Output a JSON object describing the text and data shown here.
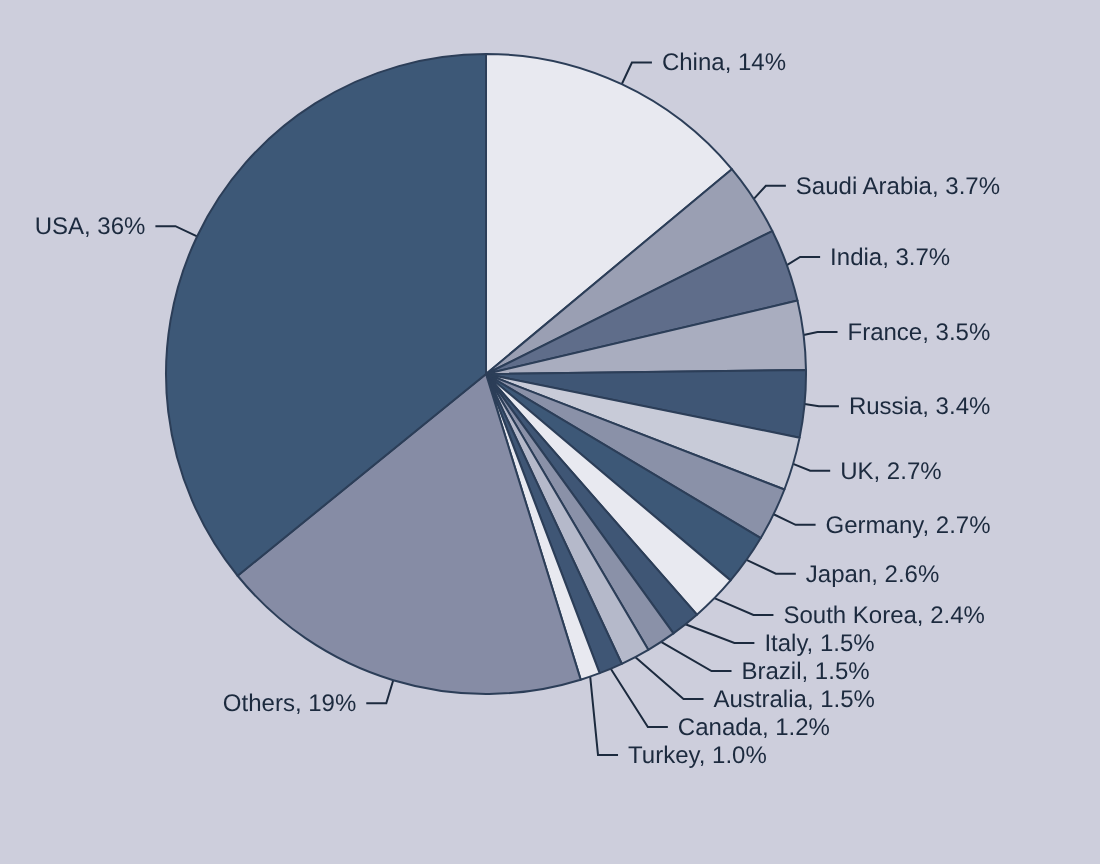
{
  "chart_data": {
    "type": "pie",
    "categories": [
      "China",
      "Saudi Arabia",
      "India",
      "France",
      "Russia",
      "UK",
      "Germany",
      "Japan",
      "South Korea",
      "Italy",
      "Brazil",
      "Australia",
      "Canada",
      "Turkey",
      "Others",
      "USA"
    ],
    "values": [
      14,
      3.7,
      3.7,
      3.5,
      3.4,
      2.7,
      2.7,
      2.6,
      2.4,
      1.5,
      1.5,
      1.5,
      1.2,
      1.0,
      19,
      36
    ],
    "value_labels": [
      "14%",
      "3.7%",
      "3.7%",
      "3.5%",
      "3.4%",
      "2.7%",
      "2.7%",
      "2.6%",
      "2.4%",
      "1.5%",
      "1.5%",
      "1.5%",
      "1.2%",
      "1.0%",
      "19%",
      "36%"
    ],
    "colors": [
      "#e8e9f0",
      "#9a9fb3",
      "#5f6d8a",
      "#a9adbf",
      "#3f5675",
      "#c8cbd8",
      "#8a91a8",
      "#3d5877",
      "#e8e9f0",
      "#3f5675",
      "#8a91a8",
      "#b5b9ca",
      "#3f5675",
      "#e8e9f0",
      "#868ca5",
      "#3d5877"
    ],
    "legend": false
  }
}
